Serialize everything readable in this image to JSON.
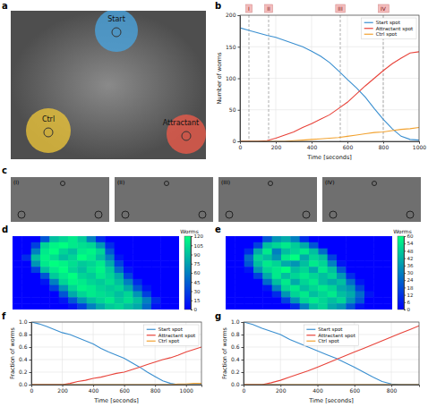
{
  "chart_data": [
    {
      "panel": "b",
      "type": "line",
      "x_label": "Time [seconds]",
      "y_label": "Number of worms",
      "x": [
        0,
        50,
        100,
        150,
        200,
        250,
        300,
        350,
        400,
        450,
        500,
        550,
        600,
        650,
        700,
        750,
        800,
        850,
        900,
        950,
        1000
      ],
      "series": [
        {
          "name": "Start spot",
          "color": "#3a8fd0",
          "values": [
            180,
            176,
            172,
            168,
            165,
            160,
            155,
            150,
            143,
            135,
            125,
            112,
            98,
            85,
            70,
            52,
            35,
            20,
            8,
            3,
            2
          ]
        },
        {
          "name": "Attractant spot",
          "color": "#e8433a",
          "values": [
            0,
            0,
            0,
            1,
            5,
            10,
            15,
            22,
            28,
            35,
            42,
            52,
            62,
            75,
            88,
            100,
            112,
            123,
            132,
            140,
            142
          ]
        },
        {
          "name": "Ctrl spot",
          "color": "#f2a230",
          "values": [
            0,
            0,
            0,
            0,
            0,
            0,
            1,
            2,
            3,
            4,
            5,
            6,
            8,
            10,
            12,
            14,
            15,
            17,
            19,
            20,
            22
          ]
        }
      ],
      "annotations": [
        {
          "x": 50,
          "label": "I"
        },
        {
          "x": 160,
          "label": "II"
        },
        {
          "x": 560,
          "label": "III"
        },
        {
          "x": 800,
          "label": "IV"
        }
      ],
      "xlim": [
        0,
        1000
      ],
      "xticks": [
        0,
        200,
        400,
        600,
        800,
        1000
      ],
      "ylim": [
        0,
        200
      ],
      "yticks": [
        0,
        50,
        100,
        150,
        200
      ],
      "grid": true,
      "legend": "upper right"
    },
    {
      "panel": "d",
      "type": "heatmap",
      "colorbar_label": "Worms",
      "colorbar_range": [
        0,
        120
      ],
      "colorbar_ticks": [
        0,
        15,
        30,
        45,
        60,
        75,
        90,
        105,
        120
      ],
      "cells": [
        [
          0,
          0,
          0,
          40,
          90,
          100,
          110,
          95,
          60,
          20,
          0,
          0,
          0,
          0,
          0,
          0,
          0,
          0
        ],
        [
          0,
          0,
          30,
          100,
          115,
          120,
          110,
          105,
          100,
          70,
          20,
          0,
          0,
          0,
          0,
          0,
          0,
          0
        ],
        [
          0,
          0,
          60,
          110,
          120,
          100,
          90,
          110,
          115,
          100,
          40,
          0,
          0,
          0,
          0,
          0,
          0,
          0
        ],
        [
          0,
          20,
          90,
          115,
          105,
          90,
          100,
          120,
          110,
          90,
          60,
          10,
          0,
          0,
          0,
          0,
          0,
          0
        ],
        [
          0,
          0,
          70,
          110,
          120,
          115,
          105,
          95,
          100,
          110,
          80,
          30,
          0,
          0,
          0,
          0,
          0,
          0
        ],
        [
          0,
          0,
          30,
          90,
          110,
          120,
          100,
          90,
          105,
          115,
          95,
          50,
          10,
          0,
          0,
          0,
          0,
          0
        ],
        [
          0,
          0,
          0,
          40,
          95,
          110,
          120,
          100,
          95,
          110,
          100,
          80,
          30,
          0,
          0,
          0,
          0,
          0
        ],
        [
          0,
          0,
          0,
          10,
          60,
          100,
          115,
          110,
          100,
          95,
          105,
          90,
          60,
          20,
          0,
          0,
          0,
          0
        ],
        [
          0,
          0,
          0,
          0,
          30,
          70,
          100,
          115,
          110,
          100,
          95,
          100,
          80,
          40,
          10,
          0,
          0,
          0
        ],
        [
          0,
          0,
          0,
          0,
          0,
          40,
          80,
          100,
          110,
          105,
          100,
          90,
          100,
          70,
          30,
          0,
          0,
          0
        ],
        [
          0,
          0,
          0,
          0,
          0,
          10,
          40,
          70,
          90,
          100,
          110,
          95,
          105,
          90,
          60,
          20,
          0,
          0
        ],
        [
          0,
          0,
          0,
          0,
          0,
          0,
          10,
          30,
          60,
          80,
          95,
          100,
          90,
          80,
          50,
          10,
          0,
          0
        ]
      ]
    },
    {
      "panel": "e",
      "type": "heatmap",
      "colorbar_label": "Worms",
      "colorbar_range": [
        0,
        60
      ],
      "colorbar_ticks": [
        0,
        6,
        12,
        18,
        24,
        30,
        36,
        42,
        48,
        54,
        60
      ],
      "cells": [
        [
          0,
          0,
          0,
          0,
          20,
          35,
          40,
          30,
          10,
          0,
          0,
          0,
          0,
          0,
          0,
          0,
          0,
          0
        ],
        [
          0,
          0,
          0,
          15,
          45,
          50,
          55,
          48,
          40,
          20,
          0,
          0,
          0,
          0,
          0,
          0,
          0,
          0
        ],
        [
          0,
          0,
          10,
          40,
          55,
          30,
          45,
          50,
          55,
          45,
          25,
          0,
          0,
          0,
          0,
          0,
          0,
          0
        ],
        [
          0,
          0,
          25,
          50,
          45,
          35,
          55,
          60,
          40,
          50,
          45,
          15,
          0,
          0,
          0,
          0,
          0,
          0
        ],
        [
          0,
          0,
          20,
          45,
          55,
          50,
          40,
          35,
          45,
          55,
          50,
          30,
          5,
          0,
          0,
          0,
          0,
          0
        ],
        [
          0,
          0,
          5,
          35,
          50,
          55,
          60,
          45,
          50,
          40,
          55,
          45,
          20,
          0,
          0,
          0,
          0,
          0
        ],
        [
          0,
          0,
          0,
          15,
          40,
          55,
          45,
          50,
          55,
          50,
          45,
          50,
          35,
          10,
          0,
          0,
          0,
          0
        ],
        [
          0,
          0,
          0,
          0,
          25,
          45,
          55,
          40,
          50,
          55,
          45,
          40,
          45,
          25,
          5,
          0,
          0,
          0
        ],
        [
          0,
          0,
          0,
          0,
          5,
          30,
          50,
          55,
          45,
          50,
          55,
          50,
          40,
          35,
          15,
          0,
          0,
          0
        ],
        [
          0,
          0,
          0,
          0,
          0,
          10,
          35,
          50,
          55,
          45,
          50,
          55,
          45,
          40,
          25,
          5,
          0,
          0
        ],
        [
          0,
          0,
          0,
          0,
          0,
          0,
          15,
          35,
          50,
          55,
          50,
          45,
          50,
          35,
          20,
          0,
          0,
          0
        ],
        [
          0,
          0,
          0,
          0,
          0,
          0,
          0,
          10,
          30,
          45,
          50,
          40,
          35,
          20,
          5,
          0,
          0,
          0
        ]
      ]
    },
    {
      "panel": "f",
      "type": "line",
      "x_label": "Time [seconds]",
      "y_label": "Fraction of worms",
      "x": [
        0,
        50,
        100,
        150,
        200,
        250,
        300,
        350,
        400,
        450,
        500,
        550,
        600,
        650,
        700,
        750,
        800,
        850,
        900,
        950,
        1000,
        1050,
        1100
      ],
      "series": [
        {
          "name": "Start spot",
          "color": "#3a8fd0",
          "values": [
            1.0,
            0.97,
            0.93,
            0.88,
            0.83,
            0.8,
            0.75,
            0.7,
            0.65,
            0.58,
            0.52,
            0.47,
            0.42,
            0.35,
            0.28,
            0.2,
            0.13,
            0.06,
            0.02,
            0,
            0,
            0,
            0
          ]
        },
        {
          "name": "Attractant spot",
          "color": "#e8433a",
          "values": [
            0,
            0,
            0,
            0,
            0,
            0.02,
            0.05,
            0.07,
            0.1,
            0.12,
            0.15,
            0.18,
            0.2,
            0.24,
            0.28,
            0.32,
            0.36,
            0.4,
            0.43,
            0.47,
            0.52,
            0.56,
            0.6
          ]
        },
        {
          "name": "Ctrl spot",
          "color": "#f2a230",
          "values": [
            0,
            0,
            0,
            0,
            0,
            0,
            0,
            0,
            0,
            0,
            0,
            0,
            0,
            0,
            0,
            0,
            0,
            0,
            0,
            0.01,
            0.01,
            0.02,
            0.02
          ]
        }
      ],
      "xlim": [
        0,
        1100
      ],
      "xticks": [
        0,
        200,
        400,
        600,
        800,
        1000
      ],
      "ylim": [
        0,
        1
      ],
      "yticks": [
        {
          "value": 0,
          "label": "0.0"
        },
        0.2,
        0.4,
        0.6,
        0.8,
        {
          "value": 1,
          "label": "1.0"
        }
      ],
      "grid": true,
      "legend": "upper right"
    },
    {
      "panel": "g",
      "type": "line",
      "x_label": "Time [seconds]",
      "y_label": "Fraction of worms",
      "x": [
        0,
        50,
        100,
        150,
        200,
        250,
        300,
        350,
        400,
        450,
        500,
        550,
        600,
        650,
        700,
        750,
        800,
        850,
        900,
        950
      ],
      "series": [
        {
          "name": "Start spot",
          "color": "#3a8fd0",
          "values": [
            1.0,
            0.96,
            0.9,
            0.85,
            0.8,
            0.72,
            0.66,
            0.6,
            0.54,
            0.48,
            0.42,
            0.35,
            0.28,
            0.2,
            0.12,
            0.05,
            0.01,
            0,
            0,
            0
          ]
        },
        {
          "name": "Attractant spot",
          "color": "#e8433a",
          "values": [
            0,
            0,
            0,
            0.03,
            0.07,
            0.12,
            0.17,
            0.22,
            0.28,
            0.34,
            0.4,
            0.46,
            0.52,
            0.58,
            0.64,
            0.7,
            0.76,
            0.82,
            0.88,
            0.94
          ]
        },
        {
          "name": "Ctrl spot",
          "color": "#f2a230",
          "values": [
            0,
            0,
            0,
            0,
            0,
            0,
            0,
            0,
            0,
            0,
            0,
            0,
            0,
            0,
            0,
            0,
            0,
            0,
            0,
            0
          ]
        }
      ],
      "xlim": [
        0,
        950
      ],
      "xticks": [
        0,
        200,
        400,
        600,
        800
      ],
      "ylim": [
        0,
        1
      ],
      "yticks": [
        {
          "value": 0,
          "label": "0.0"
        },
        0.2,
        0.4,
        0.6,
        0.8,
        {
          "value": 1,
          "label": "1.0"
        }
      ],
      "grid": true,
      "legend": "upper center"
    }
  ],
  "photo_a": {
    "panel": "a",
    "labels": [
      "Start",
      "Ctrl",
      "Attractant"
    ]
  },
  "photo_c": {
    "panel": "c",
    "frames": [
      "(I)",
      "(II)",
      "(III)",
      "(IV)"
    ]
  }
}
